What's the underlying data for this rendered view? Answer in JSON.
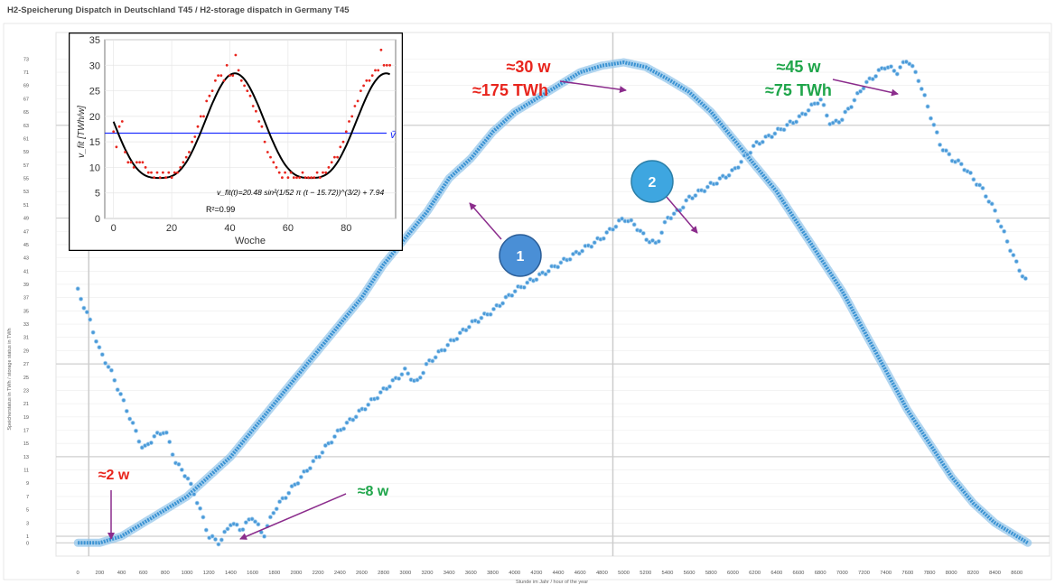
{
  "page_title": "H2-Speicherung Dispatch in Deutschland T45 / H2-storage dispatch in Germany T45",
  "colors": {
    "red": "#e8251d",
    "green": "#1fa54a",
    "arrow": "#8b2c8c",
    "curve": "#3b93d3",
    "circle1": "#4a8fd6",
    "circle2": "#3ea6e0",
    "inset_blue": "#2030ff"
  },
  "chart_data": [
    {
      "type": "scatter",
      "title": "H2-Speicherung Dispatch in Deutschland T45 / H2-storage dispatch in Germany T45",
      "xlabel": "Stunde im Jahr / hour of the year",
      "ylabel": "Speicherstatus in TWh / storage status in TWh",
      "xlim": [
        -200,
        8900
      ],
      "ylim": [
        -2,
        77
      ],
      "x_ticks": [
        0,
        200,
        400,
        600,
        800,
        1000,
        1200,
        1400,
        1600,
        1800,
        2000,
        2200,
        2400,
        2600,
        2800,
        3000,
        3200,
        3400,
        3600,
        3800,
        4000,
        4200,
        4400,
        4600,
        4800,
        5000,
        5200,
        5400,
        5600,
        5800,
        6000,
        6200,
        6400,
        6600,
        6800,
        7000,
        7200,
        7400,
        7600,
        7800,
        8000,
        8200,
        8400,
        8600
      ],
      "y_ticks": [
        0,
        1,
        3,
        5,
        7,
        9,
        11,
        13,
        15,
        17,
        19,
        21,
        23,
        25,
        27,
        29,
        31,
        33,
        35,
        37,
        39,
        41,
        43,
        45,
        47,
        49,
        51,
        53,
        55,
        57,
        59,
        61,
        63,
        65,
        67,
        69,
        71,
        73
      ],
      "series": [
        {
          "label": "1",
          "x": [
            0,
            200,
            400,
            600,
            800,
            1000,
            1200,
            1400,
            1600,
            1800,
            2000,
            2200,
            2400,
            2600,
            2800,
            3000,
            3200,
            3400,
            3600,
            3800,
            4000,
            4200,
            4400,
            4600,
            4800,
            5000,
            5200,
            5400,
            5600,
            5800,
            6000,
            6200,
            6400,
            6600,
            6800,
            7000,
            7200,
            7400,
            7600,
            7800,
            8000,
            8200,
            8400,
            8600,
            8700
          ],
          "y": [
            0,
            0,
            1,
            3,
            5,
            7,
            10,
            13,
            17,
            21,
            25,
            29,
            33,
            37,
            42,
            46,
            50,
            55,
            58,
            62,
            65,
            67,
            69,
            71,
            72,
            72.5,
            71.8,
            70,
            68,
            65,
            61,
            57,
            53,
            48,
            43,
            38,
            32,
            26,
            20,
            15,
            10,
            6,
            3,
            1,
            0
          ]
        },
        {
          "label": "2",
          "x": [
            0,
            100,
            200,
            300,
            400,
            500,
            600,
            700,
            800,
            900,
            1000,
            1100,
            1200,
            1300,
            1400,
            1500,
            1600,
            1700,
            1800,
            2000,
            2200,
            2400,
            2600,
            2800,
            3000,
            3100,
            3200,
            3400,
            3600,
            3800,
            4000,
            4200,
            4400,
            4600,
            4800,
            5000,
            5100,
            5200,
            5300,
            5400,
            5500,
            5600,
            5800,
            6000,
            6200,
            6400,
            6600,
            6800,
            6900,
            7000,
            7200,
            7400,
            7500,
            7600,
            7700,
            7800,
            7900,
            8000,
            8100,
            8200,
            8300,
            8400,
            8500,
            8600,
            8700
          ],
          "y": [
            38,
            34,
            29,
            26,
            22,
            18,
            14,
            16,
            17,
            12,
            10,
            6,
            1,
            0,
            3,
            2,
            4,
            1,
            5,
            9,
            13,
            17,
            20,
            23,
            26,
            24,
            27,
            30,
            33,
            35,
            38,
            40,
            42,
            44,
            46,
            49,
            48,
            46,
            45,
            49,
            50,
            52,
            54,
            56,
            60,
            62,
            64,
            67,
            63,
            64,
            69,
            72,
            71,
            73,
            70,
            65,
            60,
            58,
            57,
            55,
            53,
            50,
            46,
            42,
            39
          ]
        }
      ],
      "annotations": [
        {
          "text": "≈2 w",
          "color": "red"
        },
        {
          "text": "≈8 w",
          "color": "green"
        },
        {
          "text": "≈30 w",
          "color": "red"
        },
        {
          "text": "≈175 TWh",
          "color": "red"
        },
        {
          "text": "≈45 w",
          "color": "green"
        },
        {
          "text": "≈75 TWh",
          "color": "green"
        },
        {
          "text": "1",
          "kind": "circle"
        },
        {
          "text": "2",
          "kind": "circle"
        }
      ]
    },
    {
      "type": "scatter",
      "title": "",
      "xlabel": "Woche",
      "ylabel": "v_fit [TWh/w]",
      "xlim": [
        -3,
        97
      ],
      "ylim": [
        0,
        35
      ],
      "x_ticks": [
        0,
        20,
        40,
        60,
        80
      ],
      "y_ticks": [
        0,
        5,
        10,
        15,
        20,
        25,
        30,
        35
      ],
      "hline": {
        "y": 16.7,
        "label": "v̄"
      },
      "formula": "v_fit(t)=20.48 sin²(1/52 π (t − 15.72))^(3/2) + 7.94",
      "r2": "R²=0.99",
      "fit": {
        "amplitude": 20.48,
        "period": 52,
        "phase": 15.72,
        "exponent": 1.5,
        "offset": 7.94
      },
      "points_x": [
        0,
        1,
        2,
        3,
        4,
        5,
        6,
        7,
        8,
        9,
        10,
        11,
        12,
        13,
        14,
        15,
        16,
        17,
        18,
        19,
        20,
        21,
        22,
        23,
        24,
        25,
        26,
        27,
        28,
        29,
        30,
        31,
        32,
        33,
        34,
        35,
        36,
        37,
        38,
        39,
        40,
        41,
        42,
        43,
        44,
        45,
        46,
        47,
        48,
        49,
        50,
        51,
        52,
        53,
        54,
        55,
        56,
        57,
        58,
        59,
        60,
        61,
        62,
        63,
        64,
        65,
        66,
        67,
        68,
        69,
        70,
        71,
        72,
        73,
        74,
        75,
        76,
        77,
        78,
        79,
        80,
        81,
        82,
        83,
        84,
        85,
        86,
        87,
        88,
        89,
        90,
        91,
        92,
        93,
        94,
        95
      ],
      "points_y": [
        17,
        14,
        18,
        19,
        13,
        11,
        11,
        10,
        11,
        11,
        11,
        10,
        9,
        9,
        8,
        9,
        8,
        9,
        8,
        9,
        8,
        9,
        9,
        10,
        11,
        12,
        13,
        15,
        16,
        18,
        20,
        20,
        23,
        24,
        25,
        27,
        28,
        28,
        27,
        30,
        28,
        28,
        32,
        29,
        27,
        26,
        25,
        24,
        22,
        21,
        19,
        18,
        15,
        13,
        12,
        11,
        10,
        9,
        8,
        9,
        8,
        9,
        8,
        8,
        8,
        9,
        8,
        8,
        8,
        8,
        9,
        8,
        9,
        9,
        10,
        11,
        12,
        12,
        14,
        15,
        17,
        19,
        20,
        22,
        23,
        25,
        26,
        27,
        27,
        28,
        29,
        29,
        33,
        30,
        30,
        30
      ]
    }
  ]
}
